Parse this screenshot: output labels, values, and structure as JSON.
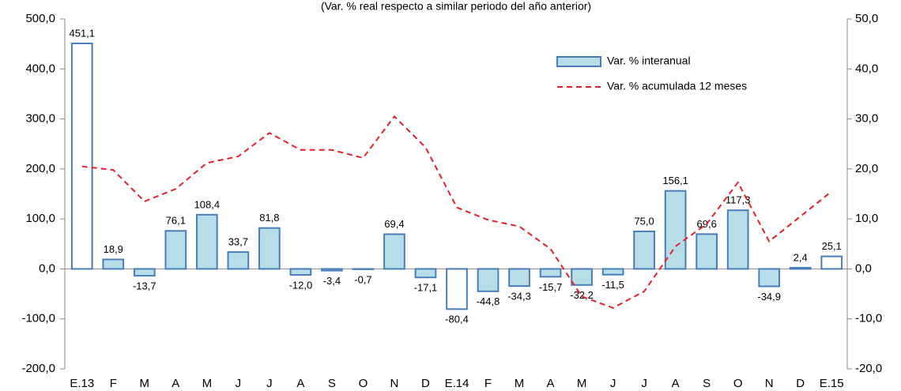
{
  "chart_data": {
    "type": "bar",
    "title": "(Var. % real respecto a similar periodo del año anterior)",
    "categories": [
      "E.13",
      "F",
      "M",
      "A",
      "M",
      "J",
      "J",
      "A",
      "S",
      "O",
      "N",
      "D",
      "E.14",
      "F",
      "M",
      "A",
      "M",
      "J",
      "J",
      "A",
      "S",
      "O",
      "N",
      "D",
      "E.15"
    ],
    "series": [
      {
        "name": "Var. % interanual",
        "type": "bar",
        "color": "#b7dde8",
        "edge_color": "#4a7ebb",
        "colors": [
          "#ffffff",
          "#b7dde8",
          "#b7dde8",
          "#b7dde8",
          "#b7dde8",
          "#b7dde8",
          "#b7dde8",
          "#b7dde8",
          "#b7dde8",
          "#b7dde8",
          "#b7dde8",
          "#b7dde8",
          "#ffffff",
          "#b7dde8",
          "#b7dde8",
          "#b7dde8",
          "#b7dde8",
          "#b7dde8",
          "#b7dde8",
          "#b7dde8",
          "#b7dde8",
          "#b7dde8",
          "#b7dde8",
          "#b7dde8",
          "#ffffff"
        ],
        "values": [
          451.1,
          18.9,
          -13.7,
          76.1,
          108.4,
          33.7,
          81.8,
          -12.0,
          -3.4,
          -0.7,
          69.4,
          -17.1,
          -80.4,
          -44.8,
          -34.3,
          -15.7,
          -32.2,
          -11.5,
          75.0,
          156.1,
          69.6,
          117.3,
          -34.9,
          2.4,
          25.1
        ],
        "value_labels": [
          "451,1",
          "18,9",
          "-13,7",
          "76,1",
          "108,4",
          "33,7",
          "81,8",
          "-12,0",
          "-3,4",
          "-0,7",
          "69,4",
          "-17,1",
          "-80,4",
          "-44,8",
          "-34,3",
          "-15,7",
          "-32,2",
          "-11,5",
          "75,0",
          "156,1",
          "69,6",
          "117,3",
          "-34,9",
          "2,4",
          "25,1"
        ]
      },
      {
        "name": "Var. % acumulada 12 meses",
        "type": "line",
        "axis": "y2",
        "color": "#e8212a",
        "dashed": true,
        "values": [
          20.5,
          19.8,
          13.5,
          16.0,
          21.2,
          22.5,
          27.2,
          23.8,
          23.8,
          22.2,
          30.5,
          24.3,
          12.3,
          9.8,
          8.5,
          4.0,
          -5.5,
          -7.8,
          -4.5,
          4.5,
          9.0,
          17.3,
          5.5,
          10.5,
          15.5
        ]
      }
    ],
    "ylim": [
      -200,
      500
    ],
    "yticks": [
      {
        "value": -200,
        "label": "-200,0"
      },
      {
        "value": -100,
        "label": "-100,0"
      },
      {
        "value": 0,
        "label": "0,0"
      },
      {
        "value": 100,
        "label": "100,0"
      },
      {
        "value": 200,
        "label": "200,0"
      },
      {
        "value": 300,
        "label": "300,0"
      },
      {
        "value": 400,
        "label": "400,0"
      },
      {
        "value": 500,
        "label": "500,0"
      }
    ],
    "y2lim": [
      -20,
      50
    ],
    "y2ticks": [
      {
        "value": -20,
        "label": "-20,0"
      },
      {
        "value": -10,
        "label": "-10,0"
      },
      {
        "value": 0,
        "label": "0,0"
      },
      {
        "value": 10,
        "label": "10,0"
      },
      {
        "value": 20,
        "label": "20,0"
      },
      {
        "value": 30,
        "label": "30,0"
      },
      {
        "value": 40,
        "label": "40,0"
      },
      {
        "value": 50,
        "label": "50,0"
      }
    ],
    "grid": false,
    "legend": "upper right"
  }
}
